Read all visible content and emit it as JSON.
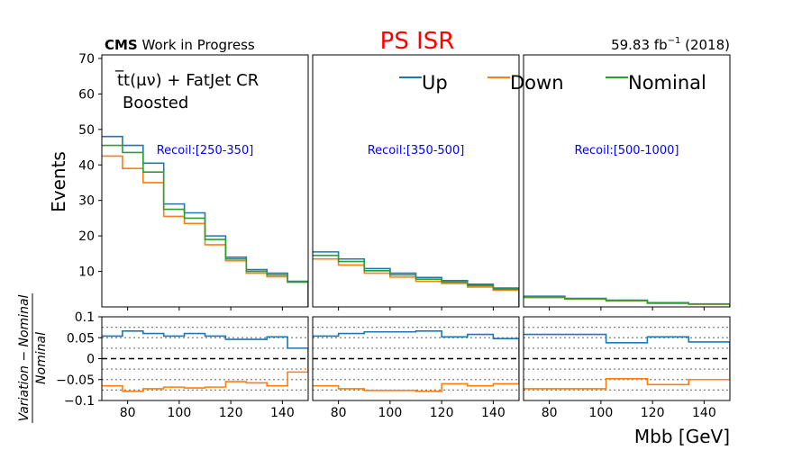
{
  "header": {
    "cms": "CMS",
    "status": " Work in Progress",
    "title": "PS ISR",
    "title_color": "#ff0000",
    "lumi_value": "59.83 fb",
    "lumi_exp": "−1",
    "lumi_year": " (2018)"
  },
  "process_label": {
    "line1": "t̅t(μν) + FatJet CR",
    "line2": "Boosted"
  },
  "colors": {
    "up": "#1f77b4",
    "down": "#ff7f0e",
    "nominal": "#2ca02c",
    "recoil": "#0000ff"
  },
  "chart_data": {
    "type": "step",
    "xlabel": "Mbb [GeV]",
    "ylabel_top": "Events",
    "ylabel_ratio_num": "Variation − Nominal",
    "ylabel_ratio_den": "Nominal",
    "xlim": [
      70,
      150
    ],
    "ylim_top": [
      0,
      71
    ],
    "ylim_ratio": [
      -0.1,
      0.1
    ],
    "yticks_top": [
      10,
      20,
      30,
      40,
      50,
      60,
      70
    ],
    "yticks_ratio": [
      -0.1,
      -0.05,
      0,
      0.05,
      0.1
    ],
    "yticks_ratio_labels": [
      "−0.1",
      "−0.05",
      "0",
      "0.05",
      "0.1"
    ],
    "xticks": [
      80,
      100,
      120,
      140
    ],
    "ratio_dotted_lines": [
      -0.075,
      -0.05,
      -0.025,
      0.025,
      0.05,
      0.075
    ],
    "legend": [
      "Up",
      "Down",
      "Nominal"
    ],
    "panels": [
      {
        "recoil": "Recoil:[250-350]",
        "edges": [
          70,
          78,
          86,
          94,
          102,
          110,
          118,
          126,
          134,
          142,
          150
        ],
        "nominal": [
          45.5,
          43.5,
          38.0,
          27.5,
          25.0,
          19.0,
          13.5,
          10.0,
          9.0,
          7.0
        ],
        "up": [
          48.0,
          45.5,
          40.5,
          29.0,
          26.5,
          20.0,
          14.0,
          10.5,
          9.5,
          7.2
        ],
        "down": [
          42.5,
          39.0,
          35.0,
          25.5,
          23.5,
          17.5,
          13.0,
          9.5,
          8.5,
          7.0
        ],
        "ratio_up": [
          0.054,
          0.066,
          0.06,
          0.054,
          0.06,
          0.054,
          0.046,
          0.046,
          0.052,
          0.025
        ],
        "ratio_down": [
          -0.065,
          -0.078,
          -0.072,
          -0.068,
          -0.07,
          -0.068,
          -0.055,
          -0.058,
          -0.065,
          -0.032
        ]
      },
      {
        "recoil": "Recoil:[350-500]",
        "edges": [
          70,
          80,
          90,
          100,
          110,
          120,
          130,
          140,
          150
        ],
        "nominal": [
          14.5,
          12.8,
          10.2,
          9.0,
          7.8,
          7.0,
          6.0,
          5.0
        ],
        "up": [
          15.5,
          13.5,
          10.8,
          9.5,
          8.3,
          7.4,
          6.4,
          5.3
        ],
        "down": [
          13.5,
          11.8,
          9.5,
          8.4,
          7.2,
          6.6,
          5.6,
          4.7
        ],
        "ratio_up": [
          0.054,
          0.06,
          0.064,
          0.064,
          0.066,
          0.052,
          0.058,
          0.048
        ],
        "ratio_down": [
          -0.065,
          -0.072,
          -0.076,
          -0.076,
          -0.078,
          -0.06,
          -0.065,
          -0.06
        ]
      },
      {
        "recoil": "Recoil:[500-1000]",
        "edges": [
          70,
          86,
          102,
          118,
          134,
          150
        ],
        "nominal": [
          2.8,
          2.3,
          1.8,
          1.1,
          0.8
        ],
        "up": [
          3.0,
          2.4,
          1.9,
          1.2,
          0.85
        ],
        "down": [
          2.6,
          2.2,
          1.7,
          1.0,
          0.75
        ],
        "ratio_up": [
          0.058,
          0.058,
          0.038,
          0.052,
          0.04
        ],
        "ratio_down": [
          -0.072,
          -0.072,
          -0.048,
          -0.062,
          -0.05
        ]
      }
    ]
  }
}
